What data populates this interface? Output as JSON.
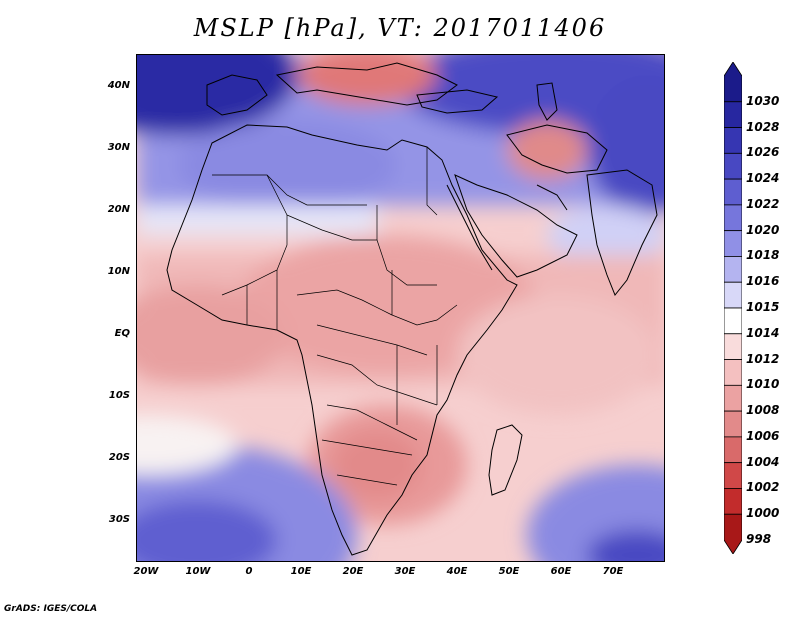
{
  "title": "MSLP [hPa], VT: 2017011406",
  "credit": "GrADS: IGES/COLA",
  "axes": {
    "lat_ticks": [
      "40N",
      "30N",
      "20N",
      "10N",
      "EQ",
      "10S",
      "20S",
      "30S"
    ],
    "lon_ticks": [
      "20W",
      "10W",
      "0",
      "10E",
      "20E",
      "30E",
      "40E",
      "50E",
      "60E",
      "70E"
    ]
  },
  "colorbar": {
    "levels": [
      "1030",
      "1028",
      "1026",
      "1024",
      "1022",
      "1020",
      "1018",
      "1016",
      "1015",
      "1014",
      "1012",
      "1010",
      "1008",
      "1006",
      "1004",
      "1002",
      "1000",
      "998"
    ],
    "colors": [
      "#1b1b8a",
      "#2727a0",
      "#3636b2",
      "#4848c2",
      "#5e5ed0",
      "#7676dc",
      "#9090e6",
      "#b4b4f0",
      "#d8d8f8",
      "#ffffff",
      "#f9dcdc",
      "#f4c0c0",
      "#eba2a2",
      "#e28a8a",
      "#d96a6a",
      "#d04848",
      "#c22c2c",
      "#a81818"
    ]
  }
}
